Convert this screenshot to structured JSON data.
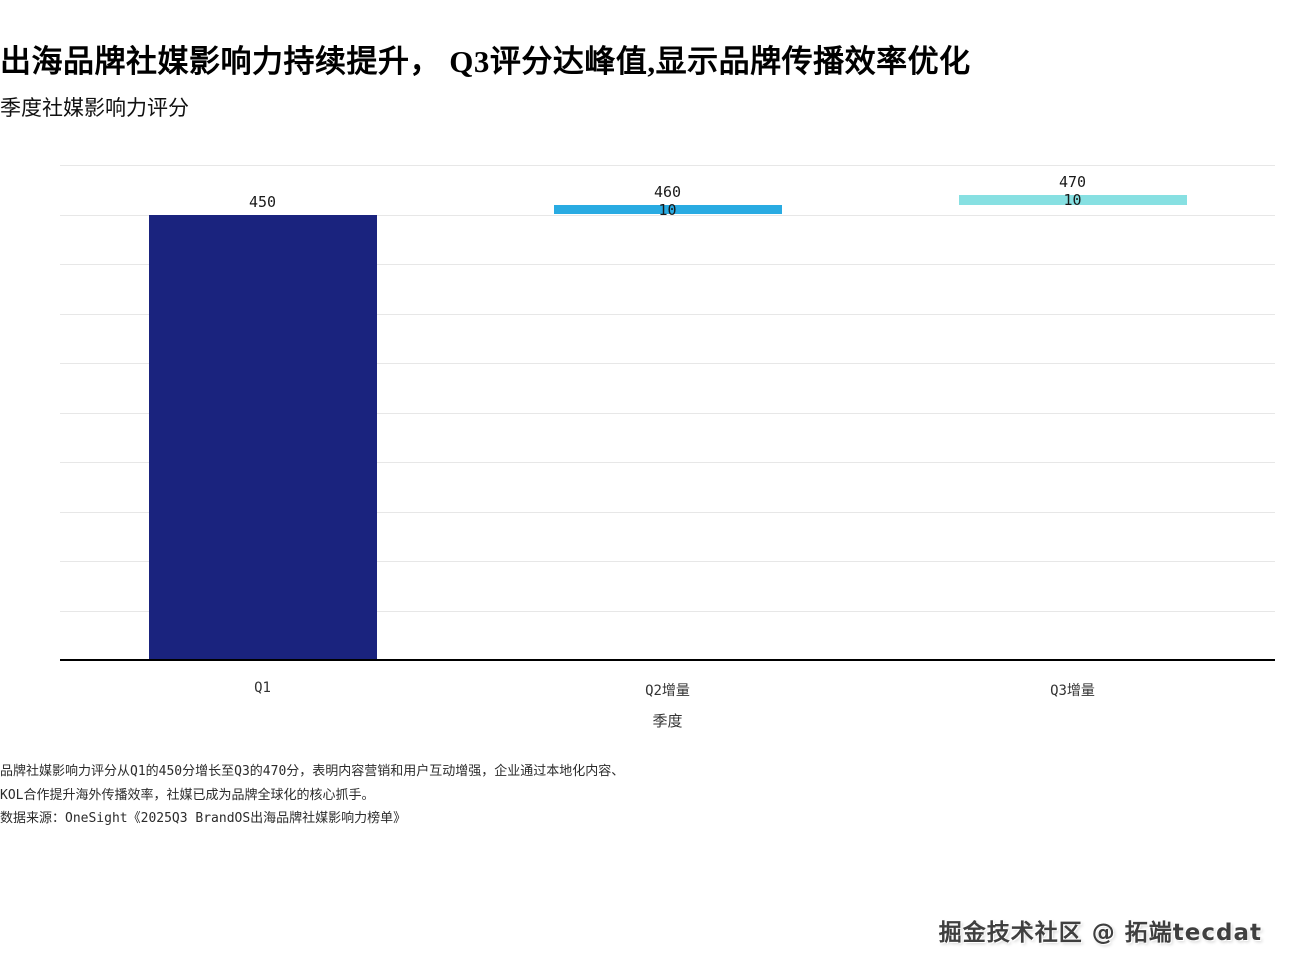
{
  "header": {
    "title": "出海品牌社媒影响力持续提升， Q3评分达峰值,显示品牌传播效率优化",
    "subtitle": "季度社媒影响力评分"
  },
  "chart_data": {
    "type": "bar",
    "subtype": "waterfall",
    "title": "季度社媒影响力评分",
    "categories": [
      "Q1",
      "Q2增量",
      "Q3增量"
    ],
    "bars": [
      {
        "category": "Q1",
        "base": 0,
        "increment": 450,
        "cumulative": 450,
        "top_label": "450",
        "increment_label": null
      },
      {
        "category": "Q2增量",
        "base": 450,
        "increment": 10,
        "cumulative": 460,
        "top_label": "460",
        "increment_label": "10"
      },
      {
        "category": "Q3增量",
        "base": 460,
        "increment": 10,
        "cumulative": 470,
        "top_label": "470",
        "increment_label": "10"
      }
    ],
    "colors": [
      "#1a237e",
      "#29abe2",
      "#87e0e2"
    ],
    "xlabel": "季度",
    "ylabel": "",
    "ylim": [
      0,
      500
    ],
    "grid": true,
    "grid_step": 50,
    "legend": null
  },
  "footer": {
    "note_line1": "品牌社媒影响力评分从Q1的450分增长至Q3的470分，表明内容营销和用户互动增强，企业通过本地化内容、",
    "note_line2": "KOL合作提升海外传播效率，社媒已成为品牌全球化的核心抓手。",
    "source": "数据来源：OneSight《2025Q3 BrandOS出海品牌社媒影响力榜单》"
  },
  "watermark": "掘金技术社区 @ 拓端tecdat"
}
